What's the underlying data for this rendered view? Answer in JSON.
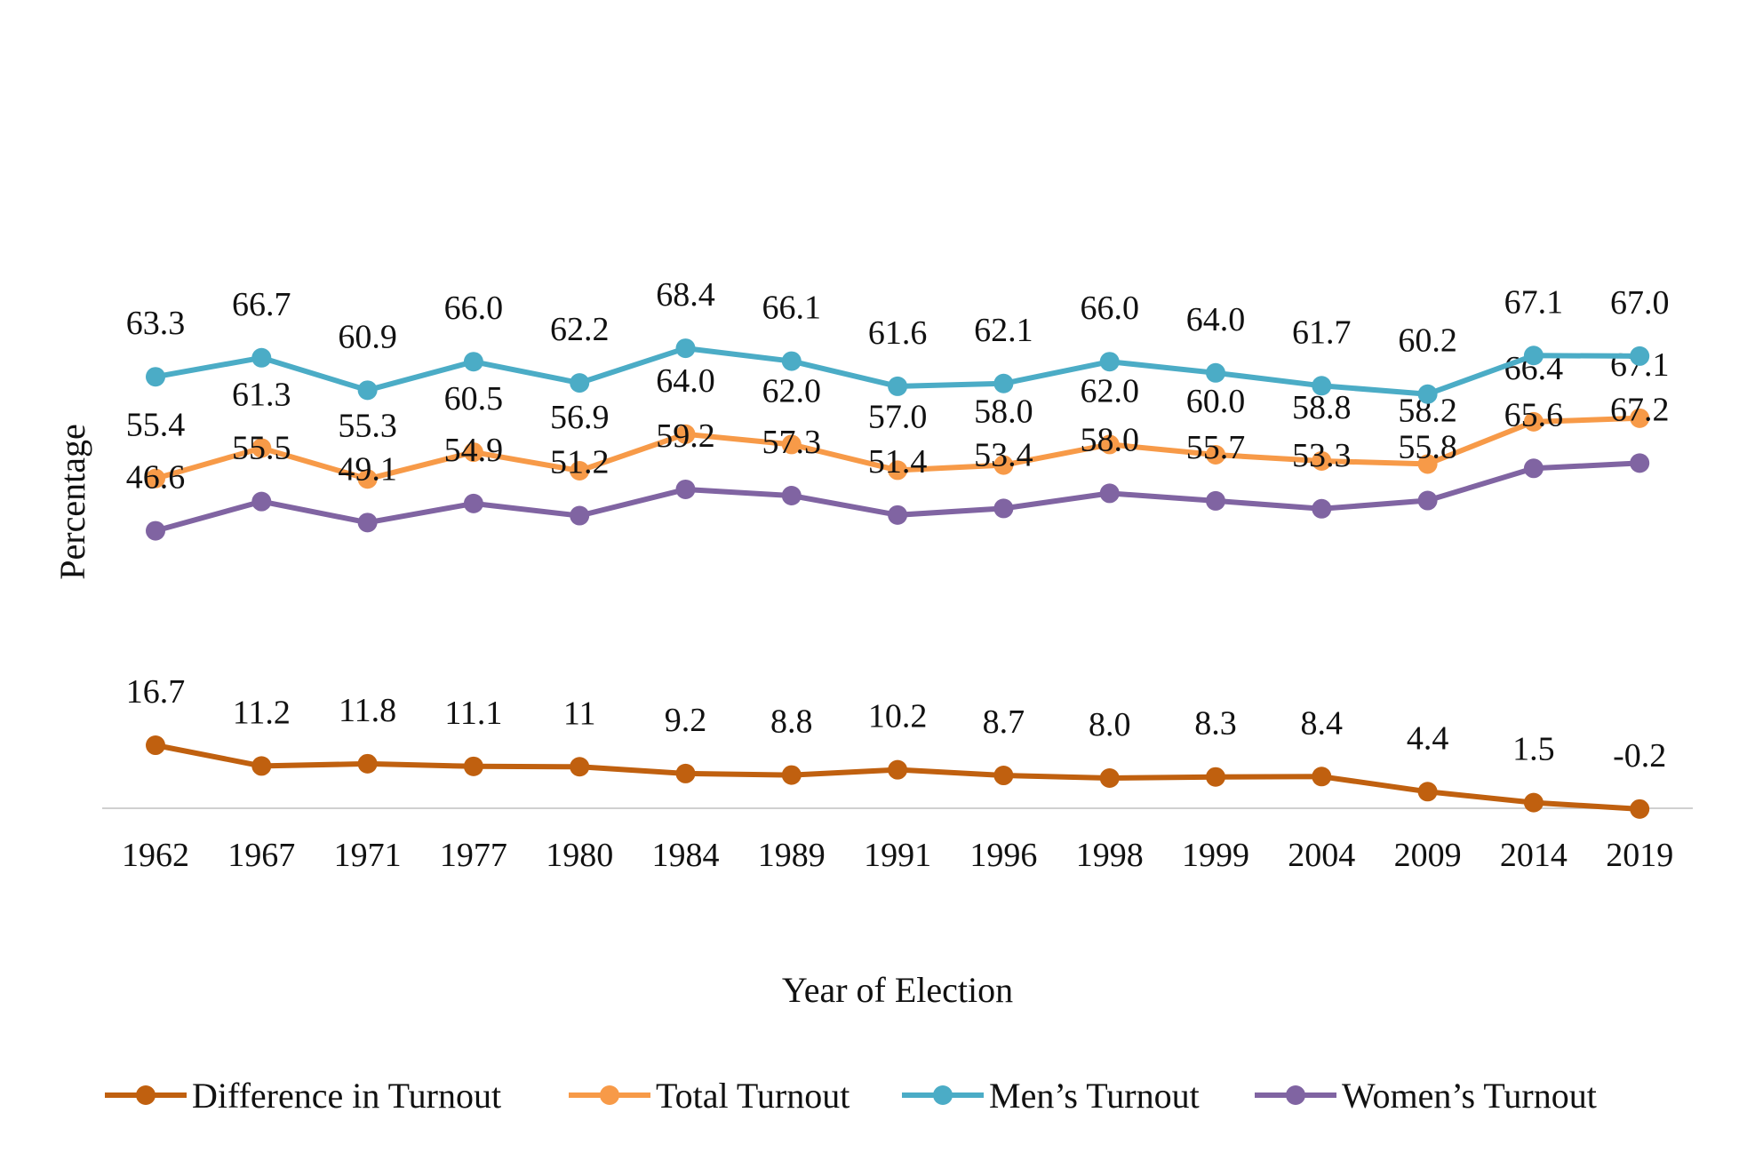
{
  "chart_data": {
    "type": "line",
    "title": "",
    "xlabel": "Year of Election",
    "ylabel": "Percentage",
    "categories": [
      "1962",
      "1967",
      "1971",
      "1977",
      "1980",
      "1984",
      "1989",
      "1991",
      "1996",
      "1998",
      "1999",
      "2004",
      "2009",
      "2014",
      "2019"
    ],
    "grid": false,
    "legend_position": "bottom",
    "series": [
      {
        "name": "Difference in Turnout",
        "color": "#C0600F",
        "values": [
          16.7,
          11.2,
          11.8,
          11.1,
          11,
          9.2,
          8.8,
          10.2,
          8.7,
          8.0,
          8.3,
          8.4,
          4.4,
          1.5,
          -0.2
        ],
        "labels": [
          "16.7",
          "11.2",
          "11.8",
          "11.1",
          "11",
          "9.2",
          "8.8",
          "10.2",
          "8.7",
          "8.0",
          "8.3",
          "8.4",
          "4.4",
          "1.5",
          "-0.2"
        ]
      },
      {
        "name": "Total Turnout",
        "color": "#F79A48",
        "values": [
          55.4,
          61.3,
          55.3,
          60.5,
          56.9,
          64.0,
          62.0,
          57.0,
          58.0,
          62.0,
          60.0,
          58.8,
          58.2,
          66.4,
          67.1
        ],
        "labels": [
          "55.4",
          "61.3",
          "55.3",
          "60.5",
          "56.9",
          "64.0",
          "62.0",
          "57.0",
          "58.0",
          "62.0",
          "60.0",
          "58.8",
          "58.2",
          "66.4",
          "67.1"
        ]
      },
      {
        "name": "Men’s Turnout",
        "color": "#4BACC6",
        "values": [
          63.3,
          66.7,
          60.9,
          66.0,
          62.2,
          68.4,
          66.1,
          61.6,
          62.1,
          66.0,
          64.0,
          61.7,
          60.2,
          67.1,
          67.0
        ],
        "labels": [
          "63.3",
          "66.7",
          "60.9",
          "66.0",
          "62.2",
          "68.4",
          "66.1",
          "61.6",
          "62.1",
          "66.0",
          "64.0",
          "61.7",
          "60.2",
          "67.1",
          "67.0"
        ]
      },
      {
        "name": "Women’s Turnout",
        "color": "#8064A2",
        "values": [
          46.6,
          55.5,
          49.1,
          54.9,
          51.2,
          59.2,
          57.3,
          51.4,
          53.4,
          58.0,
          55.7,
          53.3,
          55.8,
          65.6,
          67.2
        ],
        "labels": [
          "46.6",
          "55.5",
          "49.1",
          "54.9",
          "51.2",
          "59.2",
          "57.3",
          "51.4",
          "53.4",
          "58.0",
          "55.7",
          "53.3",
          "55.8",
          "65.6",
          "67.2"
        ]
      }
    ]
  }
}
